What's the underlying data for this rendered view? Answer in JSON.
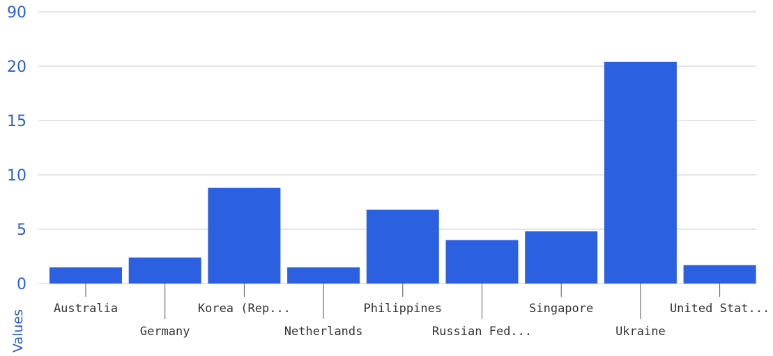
{
  "chart_data": {
    "type": "bar",
    "categories": [
      "Australia",
      "Germany",
      "Korea (Rep...",
      "Netherlands",
      "Philippines",
      "Russian Fed...",
      "Singapore",
      "Ukraine",
      "United Stat..."
    ],
    "values": [
      1.5,
      2.4,
      8.8,
      1.5,
      6.8,
      4.0,
      4.8,
      20.4,
      1.7
    ],
    "y_tick_labels": [
      "0",
      "5",
      "10",
      "15",
      "20",
      "90"
    ],
    "ylabel": "Values",
    "xlabel": "",
    "grid": true,
    "legend": "none",
    "bar_color": "#2b60e0",
    "axis_color": "#2b5fd9"
  }
}
